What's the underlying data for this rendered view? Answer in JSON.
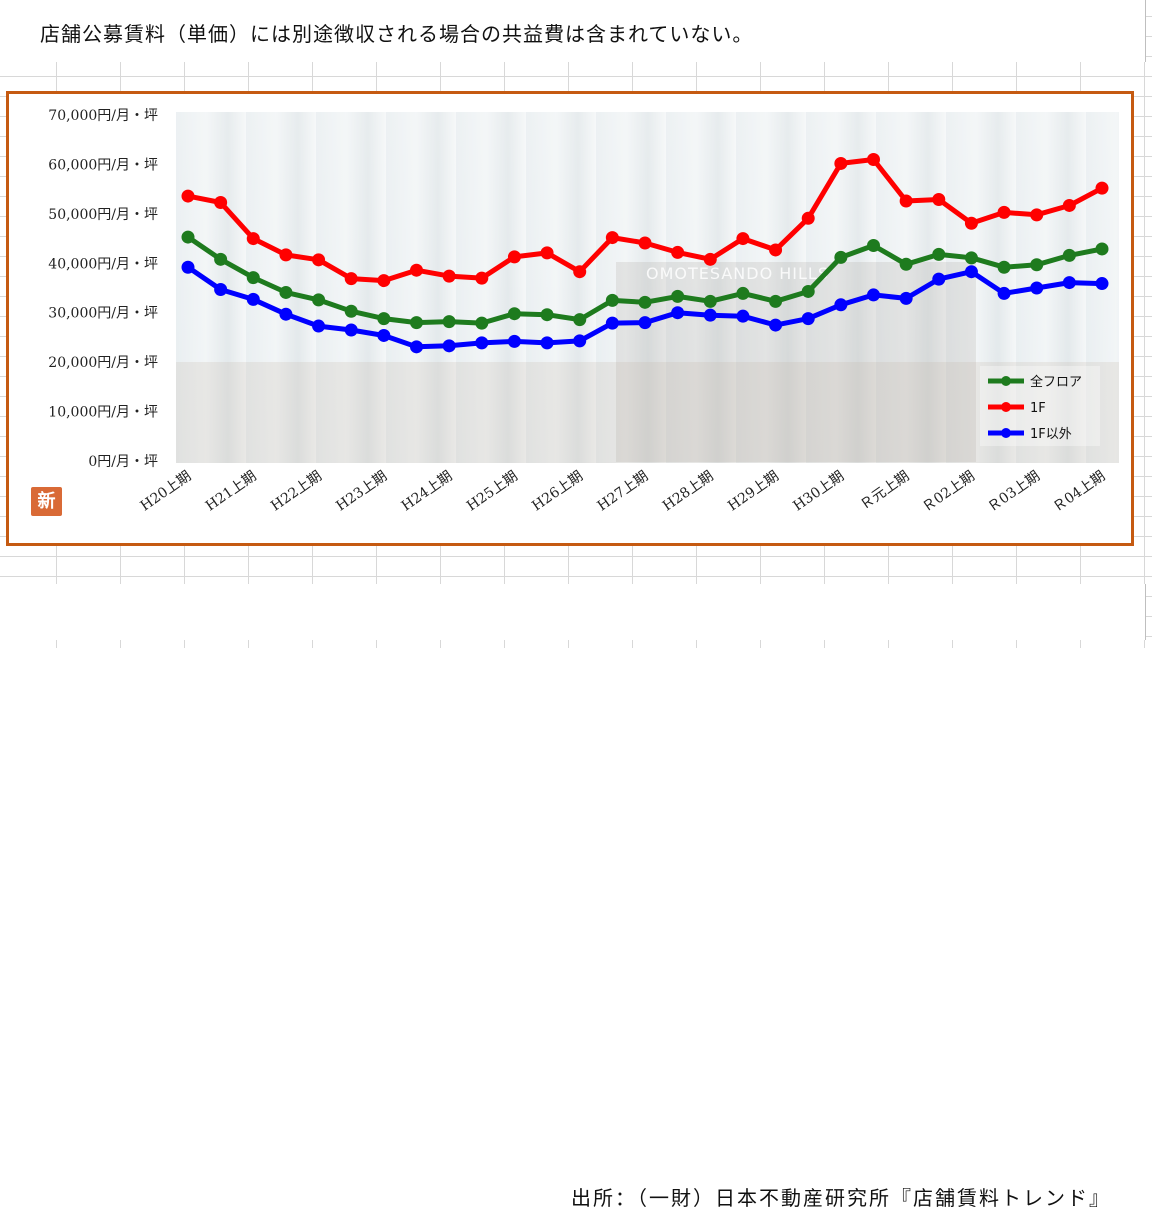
{
  "header": {
    "title": "店舗公募賃料（単価）には別途徴収される場合の共益費は含まれていない。"
  },
  "badge": {
    "label": "新"
  },
  "photo": {
    "sign_text": "OMOTESANDO HILLS"
  },
  "footer": {
    "source": "出所：（一財）日本不動産研究所『店舗賃料トレンド』"
  },
  "chart_data": {
    "type": "line",
    "ylim": [
      0,
      70000
    ],
    "y_ticks": [
      "0円/月・坪",
      "10,000円/月・坪",
      "20,000円/月・坪",
      "30,000円/月・坪",
      "40,000円/月・坪",
      "50,000円/月・坪",
      "60,000円/月・坪",
      "70,000円/月・坪"
    ],
    "x_tick_labels": [
      "H20上期",
      "H21上期",
      "H22上期",
      "H23上期",
      "H24上期",
      "H25上期",
      "H26上期",
      "H27上期",
      "H28上期",
      "H29上期",
      "H30上期",
      "Ｒ元上期",
      "Ｒ02上期",
      "Ｒ03上期",
      "Ｒ04上期"
    ],
    "legend_position": "bottom-right",
    "series": [
      {
        "name": "全フロア",
        "color": "#1e7b1e",
        "values": [
          45300,
          40800,
          37100,
          34100,
          32600,
          30300,
          28800,
          28000,
          28200,
          27900,
          29800,
          29600,
          28600,
          32500,
          32100,
          33300,
          32300,
          33900,
          32300,
          34300,
          41200,
          43600,
          39800,
          41800,
          41100,
          39200,
          39700,
          41600,
          42900
        ]
      },
      {
        "name": "1F",
        "color": "#ff0000",
        "values": [
          53600,
          52300,
          45000,
          41700,
          40700,
          36900,
          36500,
          38600,
          37400,
          37000,
          41300,
          42100,
          38300,
          45200,
          44100,
          42200,
          40800,
          45000,
          42700,
          49100,
          60200,
          61000,
          52600,
          52900,
          48100,
          50300,
          49800,
          51700,
          55200
        ]
      },
      {
        "name": "1F以外",
        "color": "#0000ff",
        "values": [
          39200,
          34700,
          32700,
          29700,
          27300,
          26500,
          25400,
          23100,
          23300,
          23900,
          24200,
          23900,
          24300,
          27900,
          28000,
          30000,
          29500,
          29300,
          27500,
          28800,
          31600,
          33600,
          32900,
          36800,
          38300,
          33900,
          35000,
          36100,
          35900
        ]
      }
    ]
  }
}
